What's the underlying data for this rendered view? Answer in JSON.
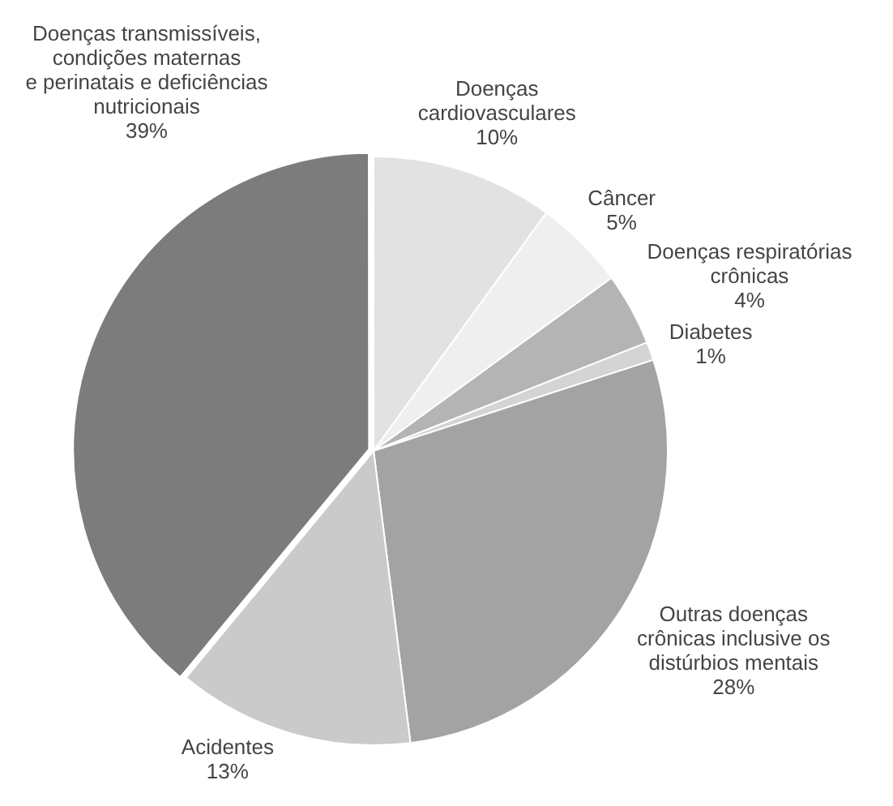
{
  "chart_data": {
    "type": "pie",
    "categories": [
      "Doenças\ncardiovasculares",
      "Câncer",
      "Doenças respiratórias\ncrônicas",
      "Diabetes",
      "Outras doenças\ncrônicas inclusive os\ndistúrbios mentais",
      "Acidentes",
      "Doenças transmissíveis,\ncondições maternas\ne perinatais e deficiências\nnutricionais"
    ],
    "values": [
      10,
      5,
      4,
      1,
      28,
      13,
      39
    ],
    "value_labels": [
      "10%",
      "5%",
      "4%",
      "1%",
      "28%",
      "13%",
      "39%"
    ],
    "colors": [
      "#e2e2e2",
      "#efefef",
      "#b4b4b4",
      "#d4d4d4",
      "#a3a3a3",
      "#cacaca",
      "#7c7c7c"
    ],
    "legend": false
  }
}
